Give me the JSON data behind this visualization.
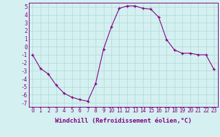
{
  "x": [
    0,
    1,
    2,
    3,
    4,
    5,
    6,
    7,
    8,
    9,
    10,
    11,
    12,
    13,
    14,
    15,
    16,
    17,
    18,
    19,
    20,
    21,
    22,
    23
  ],
  "y": [
    -1.0,
    -2.7,
    -3.4,
    -4.8,
    -5.8,
    -6.3,
    -6.6,
    -6.8,
    -4.6,
    -0.3,
    2.5,
    4.8,
    5.1,
    5.1,
    4.8,
    4.7,
    3.7,
    0.9,
    -0.4,
    -0.8,
    -0.8,
    -1.0,
    -1.0,
    -2.8
  ],
  "ylim": [
    -7.5,
    5.5
  ],
  "yticks": [
    -7,
    -6,
    -5,
    -4,
    -3,
    -2,
    -1,
    0,
    1,
    2,
    3,
    4,
    5
  ],
  "xticks": [
    0,
    1,
    2,
    3,
    4,
    5,
    6,
    7,
    8,
    9,
    10,
    11,
    12,
    13,
    14,
    15,
    16,
    17,
    18,
    19,
    20,
    21,
    22,
    23
  ],
  "line_color": "#800080",
  "marker": "+",
  "bg_color": "#d4f0f0",
  "grid_color": "#b0d8d8",
  "xlabel": "Windchill (Refroidissement éolien,°C)",
  "xlabel_fontsize": 6.5,
  "tick_fontsize": 5.5,
  "figsize": [
    3.2,
    2.0
  ],
  "dpi": 100
}
